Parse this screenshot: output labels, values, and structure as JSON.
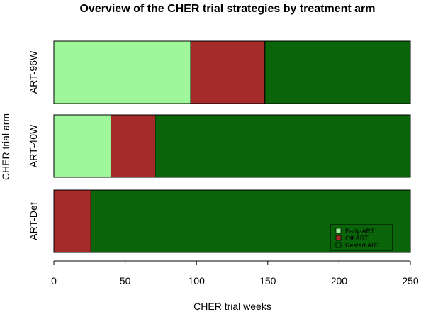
{
  "chart_data": {
    "type": "bar",
    "orientation": "horizontal",
    "stacked": true,
    "title": "Overview of the CHER trial strategies by treatment arm",
    "xlabel": "CHER trial weeks",
    "ylabel": "CHER trial arm",
    "xlim": [
      0,
      250
    ],
    "xticks": [
      0,
      50,
      100,
      150,
      200,
      250
    ],
    "categories": [
      "ART-96W",
      "ART-40W",
      "ART-Def"
    ],
    "series": [
      {
        "name": "Early-ART",
        "color": "#a0f79a",
        "values": [
          96,
          40,
          0
        ]
      },
      {
        "name": "Off-ART",
        "color": "#a52a2a",
        "values": [
          52,
          31,
          26
        ]
      },
      {
        "name": "Restart ART",
        "color": "#0a640a",
        "values": [
          102,
          179,
          224
        ]
      }
    ],
    "legend_position": "bottom-right",
    "grid": false
  }
}
